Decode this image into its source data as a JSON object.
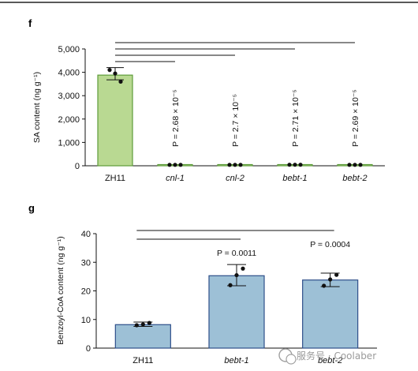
{
  "chart_data": [
    {
      "panel": "f",
      "type": "bar",
      "ylabel": "SA content (ng g⁻¹)",
      "ylim": [
        0,
        5000
      ],
      "yticks": [
        0,
        1000,
        2000,
        3000,
        4000,
        5000
      ],
      "ytick_labels": [
        "0",
        "1,000",
        "2,000",
        "3,000",
        "4,000",
        "5,000"
      ],
      "categories": [
        "ZH11",
        "cnl-1",
        "cnl-2",
        "bebt-1",
        "bebt-2"
      ],
      "italic_categories": [
        false,
        true,
        true,
        true,
        true
      ],
      "values": [
        3880,
        40,
        40,
        45,
        40
      ],
      "error_low": [
        3680,
        30,
        30,
        35,
        30
      ],
      "error_high": [
        4200,
        50,
        50,
        55,
        50
      ],
      "points": [
        [
          4100,
          3950,
          3600
        ],
        [
          40,
          40,
          40
        ],
        [
          40,
          40,
          40
        ],
        [
          45,
          45,
          45
        ],
        [
          40,
          40,
          40
        ]
      ],
      "bar_fill": "#b9d992",
      "bar_stroke": "#5d9c3a",
      "annotations": [
        "P = 2.68 × 10⁻⁵",
        "P = 2.7 × 10⁻⁵",
        "P = 2.71 × 10⁻⁵",
        "P = 2.69 × 10⁻⁵"
      ]
    },
    {
      "panel": "g",
      "type": "bar",
      "ylabel": "Benzoyl-CoA content (ng g⁻¹)",
      "ylim": [
        0,
        40
      ],
      "yticks": [
        0,
        10,
        20,
        30,
        40
      ],
      "ytick_labels": [
        "0",
        "10",
        "20",
        "30",
        "40"
      ],
      "categories": [
        "ZH11",
        "bebt-1",
        "bebt-2"
      ],
      "italic_categories": [
        false,
        true,
        true
      ],
      "values": [
        8.2,
        25.3,
        23.8
      ],
      "error_low": [
        7.6,
        21.8,
        21.5
      ],
      "error_high": [
        9.1,
        29.2,
        26.2
      ],
      "points": [
        [
          8.0,
          8.3,
          8.8
        ],
        [
          22.0,
          25.5,
          27.8
        ],
        [
          21.8,
          24.0,
          25.6
        ]
      ],
      "bar_fill": "#9dc0d6",
      "bar_stroke": "#2e4f8a",
      "annotations": [
        "P = 0.0011",
        "P = 0.0004"
      ]
    }
  ],
  "watermark": {
    "text": "服务号 · Coolaber"
  }
}
